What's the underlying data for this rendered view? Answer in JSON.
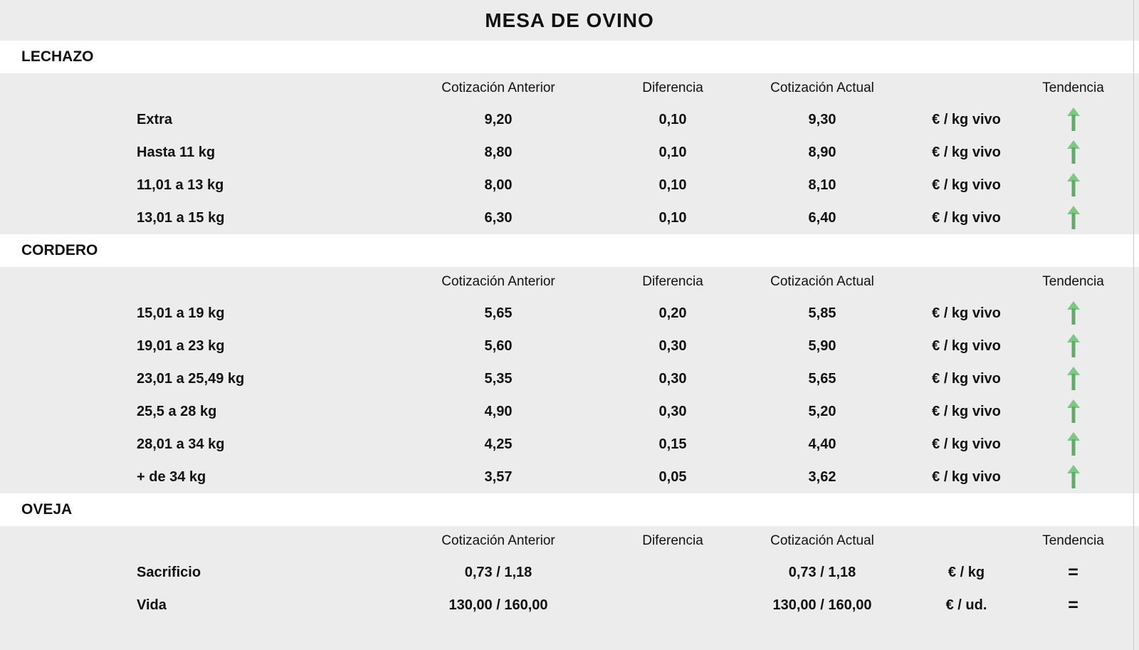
{
  "title": "MESA DE OVINO",
  "column_headers": {
    "anterior": "Cotización Anterior",
    "diferencia": "Diferencia",
    "actual": "Cotización Actual",
    "tendencia": "Tendencia"
  },
  "trend_symbols": {
    "equal": "="
  },
  "colors": {
    "background": "#ececec",
    "section_background": "#ffffff",
    "text": "#111111",
    "trend_up_head": "#7cc884",
    "trend_up_stem": "#62a96b",
    "trend_equal": "#111111"
  },
  "sections": [
    {
      "name": "LECHAZO",
      "rows": [
        {
          "label": "Extra",
          "anterior": "9,20",
          "diferencia": "0,10",
          "actual": "9,30",
          "unit": "€ / kg vivo",
          "trend": "up"
        },
        {
          "label": "Hasta 11 kg",
          "anterior": "8,80",
          "diferencia": "0,10",
          "actual": "8,90",
          "unit": "€ / kg vivo",
          "trend": "up"
        },
        {
          "label": "11,01 a 13 kg",
          "anterior": "8,00",
          "diferencia": "0,10",
          "actual": "8,10",
          "unit": "€ / kg vivo",
          "trend": "up"
        },
        {
          "label": "13,01 a 15 kg",
          "anterior": "6,30",
          "diferencia": "0,10",
          "actual": "6,40",
          "unit": "€ / kg vivo",
          "trend": "up"
        }
      ]
    },
    {
      "name": "CORDERO",
      "rows": [
        {
          "label": "15,01 a 19 kg",
          "anterior": "5,65",
          "diferencia": "0,20",
          "actual": "5,85",
          "unit": "€ / kg vivo",
          "trend": "up"
        },
        {
          "label": "19,01 a 23 kg",
          "anterior": "5,60",
          "diferencia": "0,30",
          "actual": "5,90",
          "unit": "€ / kg vivo",
          "trend": "up"
        },
        {
          "label": "23,01 a 25,49 kg",
          "anterior": "5,35",
          "diferencia": "0,30",
          "actual": "5,65",
          "unit": "€ / kg vivo",
          "trend": "up"
        },
        {
          "label": "25,5 a 28 kg",
          "anterior": "4,90",
          "diferencia": "0,30",
          "actual": "5,20",
          "unit": "€ / kg vivo",
          "trend": "up"
        },
        {
          "label": "28,01 a 34 kg",
          "anterior": "4,25",
          "diferencia": "0,15",
          "actual": "4,40",
          "unit": "€ / kg vivo",
          "trend": "up"
        },
        {
          "label": "+ de 34 kg",
          "anterior": "3,57",
          "diferencia": "0,05",
          "actual": "3,62",
          "unit": "€ / kg vivo",
          "trend": "up"
        }
      ]
    },
    {
      "name": "OVEJA",
      "rows": [
        {
          "label": "Sacrificio",
          "anterior": "0,73 / 1,18",
          "diferencia": "",
          "actual": "0,73 / 1,18",
          "unit": "€ / kg",
          "trend": "equal"
        },
        {
          "label": "Vida",
          "anterior": "130,00 / 160,00",
          "diferencia": "",
          "actual": "130,00 / 160,00",
          "unit": "€ / ud.",
          "trend": "equal"
        }
      ]
    }
  ]
}
